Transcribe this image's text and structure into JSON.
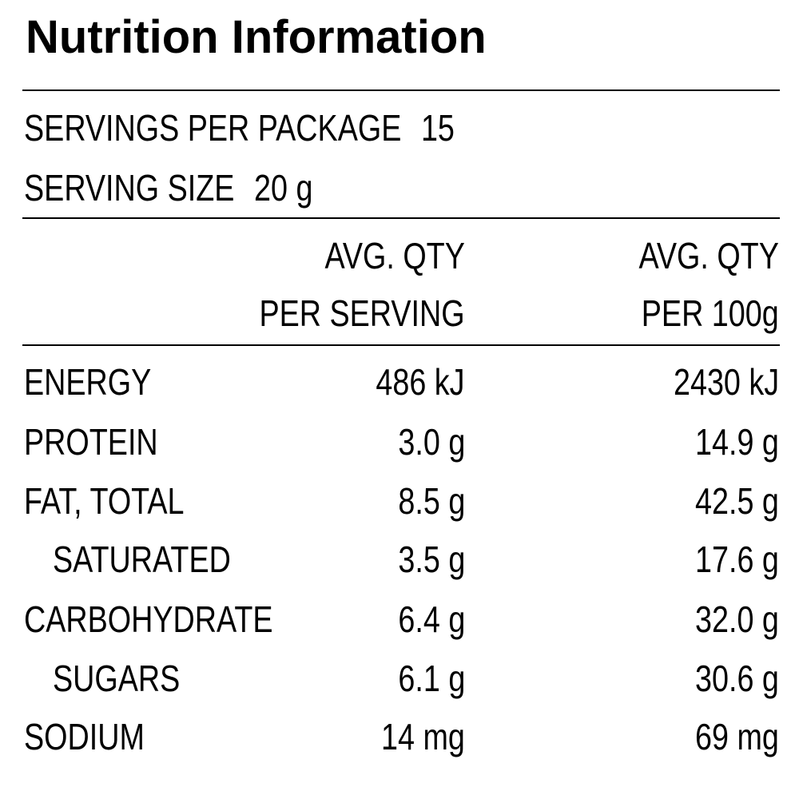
{
  "header": {
    "title": "Nutrition Information"
  },
  "servings": [
    {
      "label": "SERVINGS PER PACKAGE",
      "value": "15"
    },
    {
      "label": "SERVING SIZE",
      "value": "20 g"
    }
  ],
  "table": {
    "columns": [
      [
        "AVG. QTY",
        "PER SERVING"
      ],
      [
        "AVG. QTY",
        "PER 100g"
      ]
    ],
    "rows": [
      [
        "ENERGY",
        "486 kJ",
        "2430 kJ"
      ],
      [
        "PROTEIN",
        "3.0 g",
        "14.9 g"
      ],
      [
        "FAT, TOTAL",
        "8.5 g",
        "42.5 g"
      ],
      [
        "SATURATED",
        "3.5 g",
        "17.6 g"
      ],
      [
        "CARBOHYDRATE",
        "6.4 g",
        "32.0 g"
      ],
      [
        "SUGARS",
        "6.1 g",
        "30.6 g"
      ],
      [
        "SODIUM",
        "14 mg",
        "69 mg"
      ]
    ]
  }
}
